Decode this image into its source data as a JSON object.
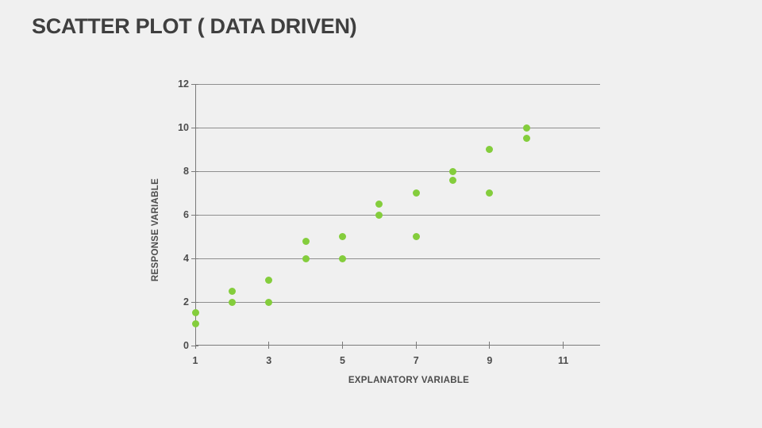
{
  "title": "SCATTER PLOT ( DATA DRIVEN)",
  "colors": {
    "background": "#f0f0f0",
    "title_text": "#3f3f3f",
    "axis_text": "#4c4c4c",
    "grid_line": "#8f8f8f",
    "axis_line": "#7a7a7a",
    "point": "#84cd3c"
  },
  "chart_data": {
    "type": "scatter",
    "title": "SCATTER PLOT ( DATA DRIVEN)",
    "xlabel": "EXPLANATORY VARIABLE",
    "ylabel": "RESPONSE VARIABLE",
    "xlim": [
      1,
      12
    ],
    "ylim": [
      0,
      12
    ],
    "x_ticks": [
      1,
      3,
      5,
      7,
      9,
      11
    ],
    "y_ticks": [
      0,
      2,
      4,
      6,
      8,
      10,
      12
    ],
    "grid": "horizontal-only",
    "legend": "none",
    "points": [
      {
        "x": 1,
        "y": 1.0
      },
      {
        "x": 1,
        "y": 1.5
      },
      {
        "x": 2,
        "y": 2.0
      },
      {
        "x": 2,
        "y": 2.5
      },
      {
        "x": 3,
        "y": 2.0
      },
      {
        "x": 3,
        "y": 3.0
      },
      {
        "x": 4,
        "y": 4.0
      },
      {
        "x": 4,
        "y": 4.8
      },
      {
        "x": 5,
        "y": 4.0
      },
      {
        "x": 5,
        "y": 5.0
      },
      {
        "x": 6,
        "y": 6.0
      },
      {
        "x": 6,
        "y": 6.5
      },
      {
        "x": 7,
        "y": 5.0
      },
      {
        "x": 7,
        "y": 7.0
      },
      {
        "x": 8,
        "y": 7.6
      },
      {
        "x": 8,
        "y": 8.0
      },
      {
        "x": 9,
        "y": 7.0
      },
      {
        "x": 9,
        "y": 9.0
      },
      {
        "x": 10,
        "y": 9.5
      },
      {
        "x": 10,
        "y": 10.0
      }
    ]
  }
}
